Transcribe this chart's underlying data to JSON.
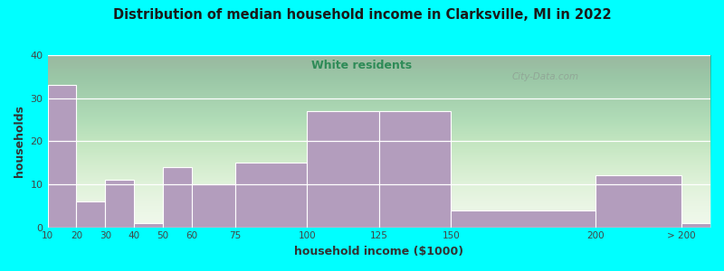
{
  "title": "Distribution of median household income in Clarksville, MI in 2022",
  "subtitle": "White residents",
  "xlabel": "household income ($1000)",
  "ylabel": "households",
  "background_color": "#00FFFF",
  "bar_color": "#b39dbd",
  "bar_edge_color": "#ffffff",
  "title_color": "#1a1a1a",
  "subtitle_color": "#2e8b57",
  "axis_label_color": "#333333",
  "tick_label_color": "#444444",
  "watermark": "City-Data.com",
  "bin_edges": [
    10,
    20,
    30,
    40,
    50,
    60,
    75,
    100,
    125,
    150,
    200,
    230
  ],
  "bin_labels": [
    "10",
    "20",
    "30",
    "40",
    "50",
    "60",
    "75",
    "100",
    "125",
    "150",
    "200",
    "> 200"
  ],
  "values": [
    33,
    6,
    11,
    1,
    14,
    10,
    15,
    27,
    27,
    4,
    12,
    1
  ],
  "ylim": [
    0,
    40
  ],
  "yticks": [
    0,
    10,
    20,
    30,
    40
  ],
  "xlim": [
    10,
    240
  ],
  "xtick_positions": [
    10,
    20,
    30,
    40,
    50,
    60,
    75,
    100,
    125,
    150,
    200,
    230
  ],
  "xtick_labels": [
    "10",
    "20",
    "30",
    "40",
    "50",
    "60",
    "75",
    "100",
    "125",
    "150",
    "200",
    "> 200"
  ]
}
